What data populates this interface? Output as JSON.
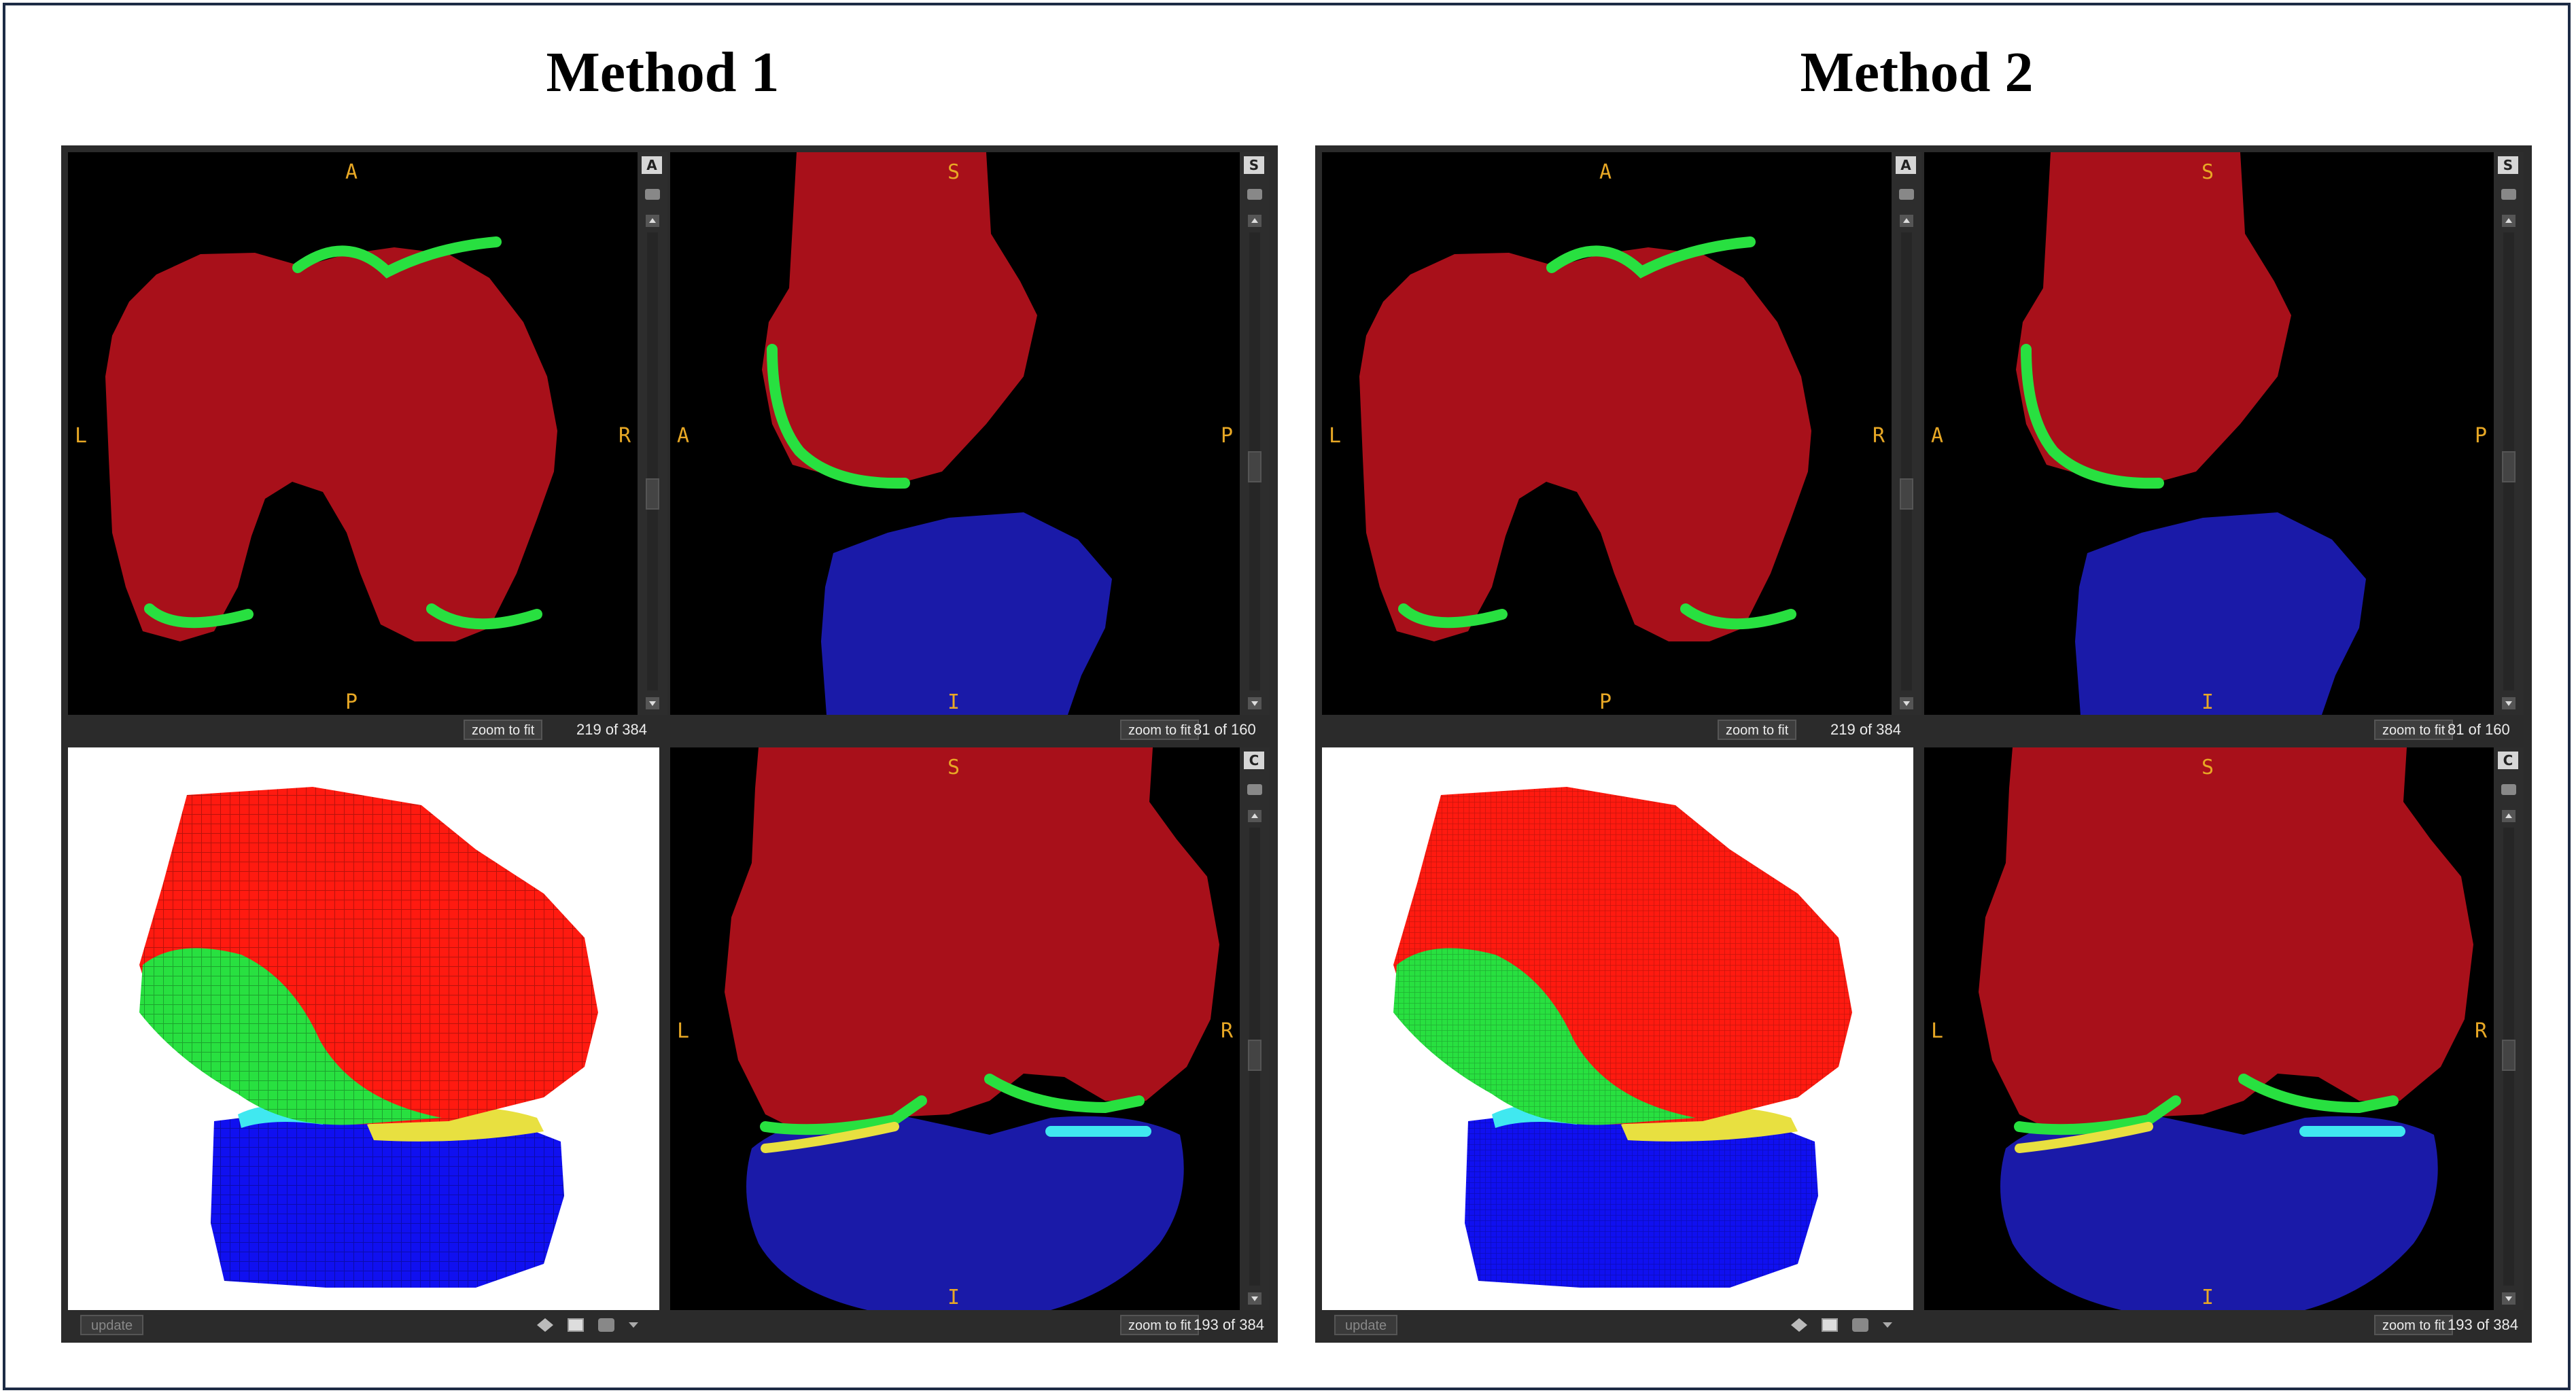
{
  "methods": [
    {
      "title": "Method 1",
      "axial": {
        "badge": "A",
        "top": "A",
        "bottom": "P",
        "left": "L",
        "right": "R",
        "zoom": "zoom to fit",
        "slice": "219 of 384"
      },
      "sagittal": {
        "badge": "S",
        "top": "S",
        "bottom": "I",
        "left": "A",
        "right": "P",
        "zoom": "zoom to fit",
        "slice": "81 of 160"
      },
      "coronal": {
        "badge": "C",
        "top": "S",
        "bottom": "I",
        "left": "L",
        "right": "R",
        "zoom": "zoom to fit",
        "slice": "193 of 384"
      },
      "render3d": {
        "update": "update"
      }
    },
    {
      "title": "Method 2",
      "axial": {
        "badge": "A",
        "top": "A",
        "bottom": "P",
        "left": "L",
        "right": "R",
        "zoom": "zoom to fit",
        "slice": "219 of 384"
      },
      "sagittal": {
        "badge": "S",
        "top": "S",
        "bottom": "I",
        "left": "A",
        "right": "P",
        "zoom": "zoom to fit",
        "slice": "81 of 160"
      },
      "coronal": {
        "badge": "C",
        "top": "S",
        "bottom": "I",
        "left": "L",
        "right": "R",
        "zoom": "zoom to fit",
        "slice": "193 of 384"
      },
      "render3d": {
        "update": "update"
      }
    }
  ],
  "colors": {
    "femur": "#a8101a",
    "femur_3d": "#ff1a10",
    "tibia": "#1a1aa8",
    "tibia_3d": "#1010f0",
    "cartilage": "#28e040",
    "meniscus_lateral": "#40e8f0",
    "meniscus_medial": "#e8e040",
    "label": "#e8a825",
    "ui_dark": "#2b2b2b"
  }
}
